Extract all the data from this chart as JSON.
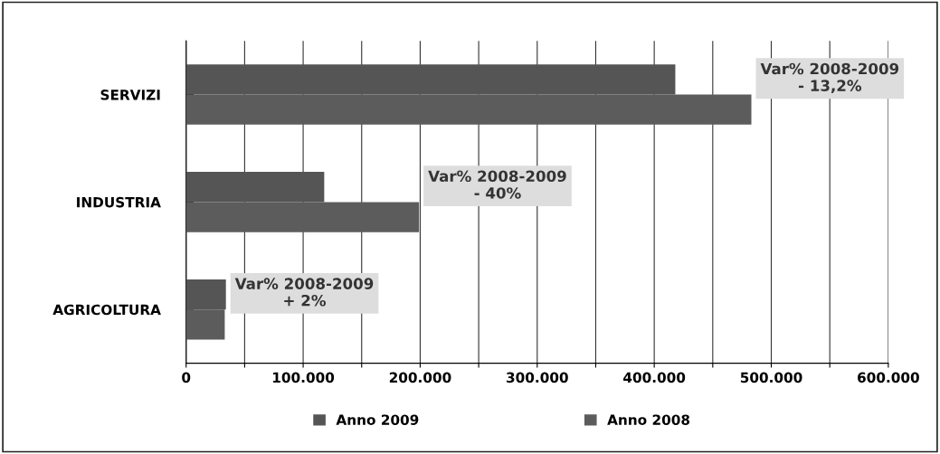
{
  "chart_data": {
    "type": "bar",
    "orientation": "horizontal",
    "categories": [
      "SERVIZI",
      "INDUSTRIA",
      "AGRICOLTURA"
    ],
    "series": [
      {
        "name": "Anno 2009",
        "color": "#555555",
        "values": [
          418000,
          118000,
          34000
        ]
      },
      {
        "name": "Anno 2008",
        "color": "#5c5c5c",
        "values": [
          483000,
          199000,
          33000
        ]
      }
    ],
    "xlim": [
      0,
      600000
    ],
    "xticks": [
      0,
      {
        "value": 50000,
        "label": null
      },
      {
        "value": 100000,
        "label": "100.000"
      },
      {
        "value": 150000,
        "label": null
      },
      {
        "value": 200000,
        "label": "200.000"
      },
      {
        "value": 250000,
        "label": null
      },
      {
        "value": 300000,
        "label": "300.000"
      },
      {
        "value": 350000,
        "label": null
      },
      {
        "value": 400000,
        "label": "400.000"
      },
      {
        "value": 450000,
        "label": null
      },
      {
        "value": 500000,
        "label": "500.000"
      },
      {
        "value": 550000,
        "label": null
      },
      {
        "value": 600000,
        "label": "600.000"
      }
    ],
    "grid": "x",
    "legend": "bottom",
    "annotations": [
      "Var% 2008-2009\n- 13,2%",
      "Var% 2008-2009\n- 40%",
      "Var% 2008-2009\n+ 2%"
    ]
  }
}
